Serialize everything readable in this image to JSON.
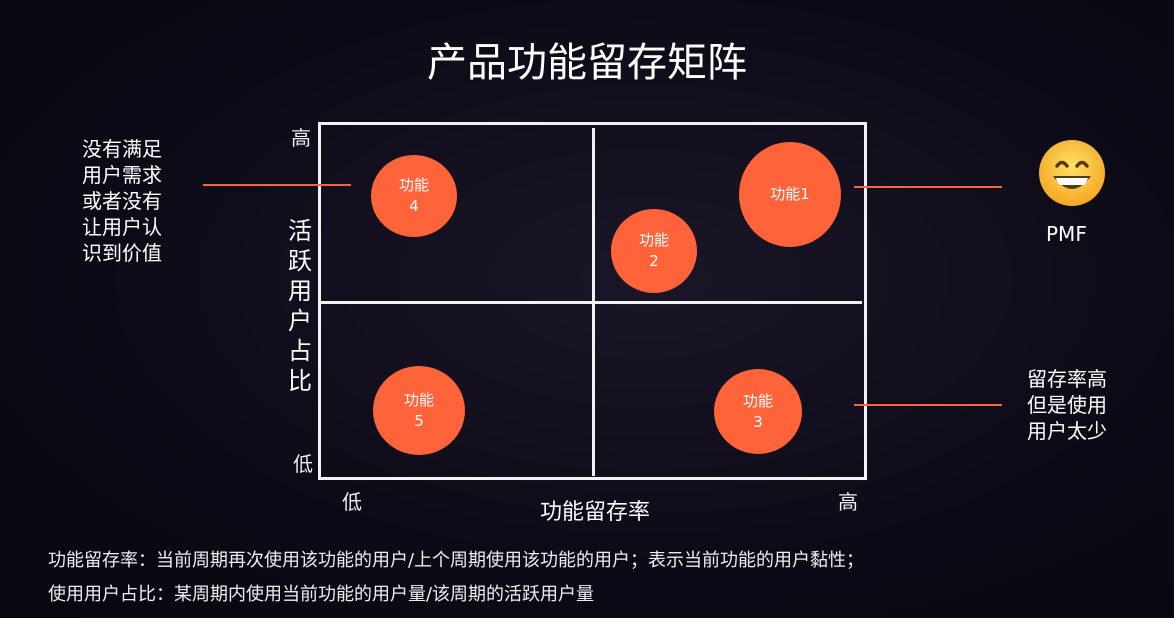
{
  "title": "产品功能留存矩阵",
  "axes": {
    "y_label": "活跃用户占比",
    "y_high": "高",
    "y_low": "低",
    "x_label": "功能留存率",
    "x_low": "低",
    "x_high": "高"
  },
  "bubbles": [
    {
      "label": "功能1",
      "quadrant": "high-retention / high-active"
    },
    {
      "label_line1": "功能",
      "label_line2": "2",
      "quadrant": "high-retention / high-active"
    },
    {
      "label_line1": "功能",
      "label_line2": "3",
      "quadrant": "high-retention / low-active"
    },
    {
      "label_line1": "功能",
      "label_line2": "4",
      "quadrant": "low-retention / high-active"
    },
    {
      "label_line1": "功能",
      "label_line2": "5",
      "quadrant": "low-retention / low-active"
    }
  ],
  "annotations": {
    "left_top": [
      "没有满足",
      "用户需求",
      "或者没有",
      "让用户认",
      "识到价值"
    ],
    "right_top": "PMF",
    "right_top_icon": "grinning-face-emoji",
    "right_bottom": [
      "留存率高",
      "但是使用",
      "用户太少"
    ]
  },
  "footnotes": [
    "功能留存率：当前周期再次使用该功能的用户/上个周期使用该功能的用户；表示当前功能的用户黏性；",
    "使用用户占比：某周期内使用当前功能的用户量/该周期的活跃用户量"
  ],
  "colors": {
    "bubble": "#ff6339",
    "connector": "#ff6339",
    "grid": "#f2f2f2",
    "background": "#0d0a17"
  }
}
